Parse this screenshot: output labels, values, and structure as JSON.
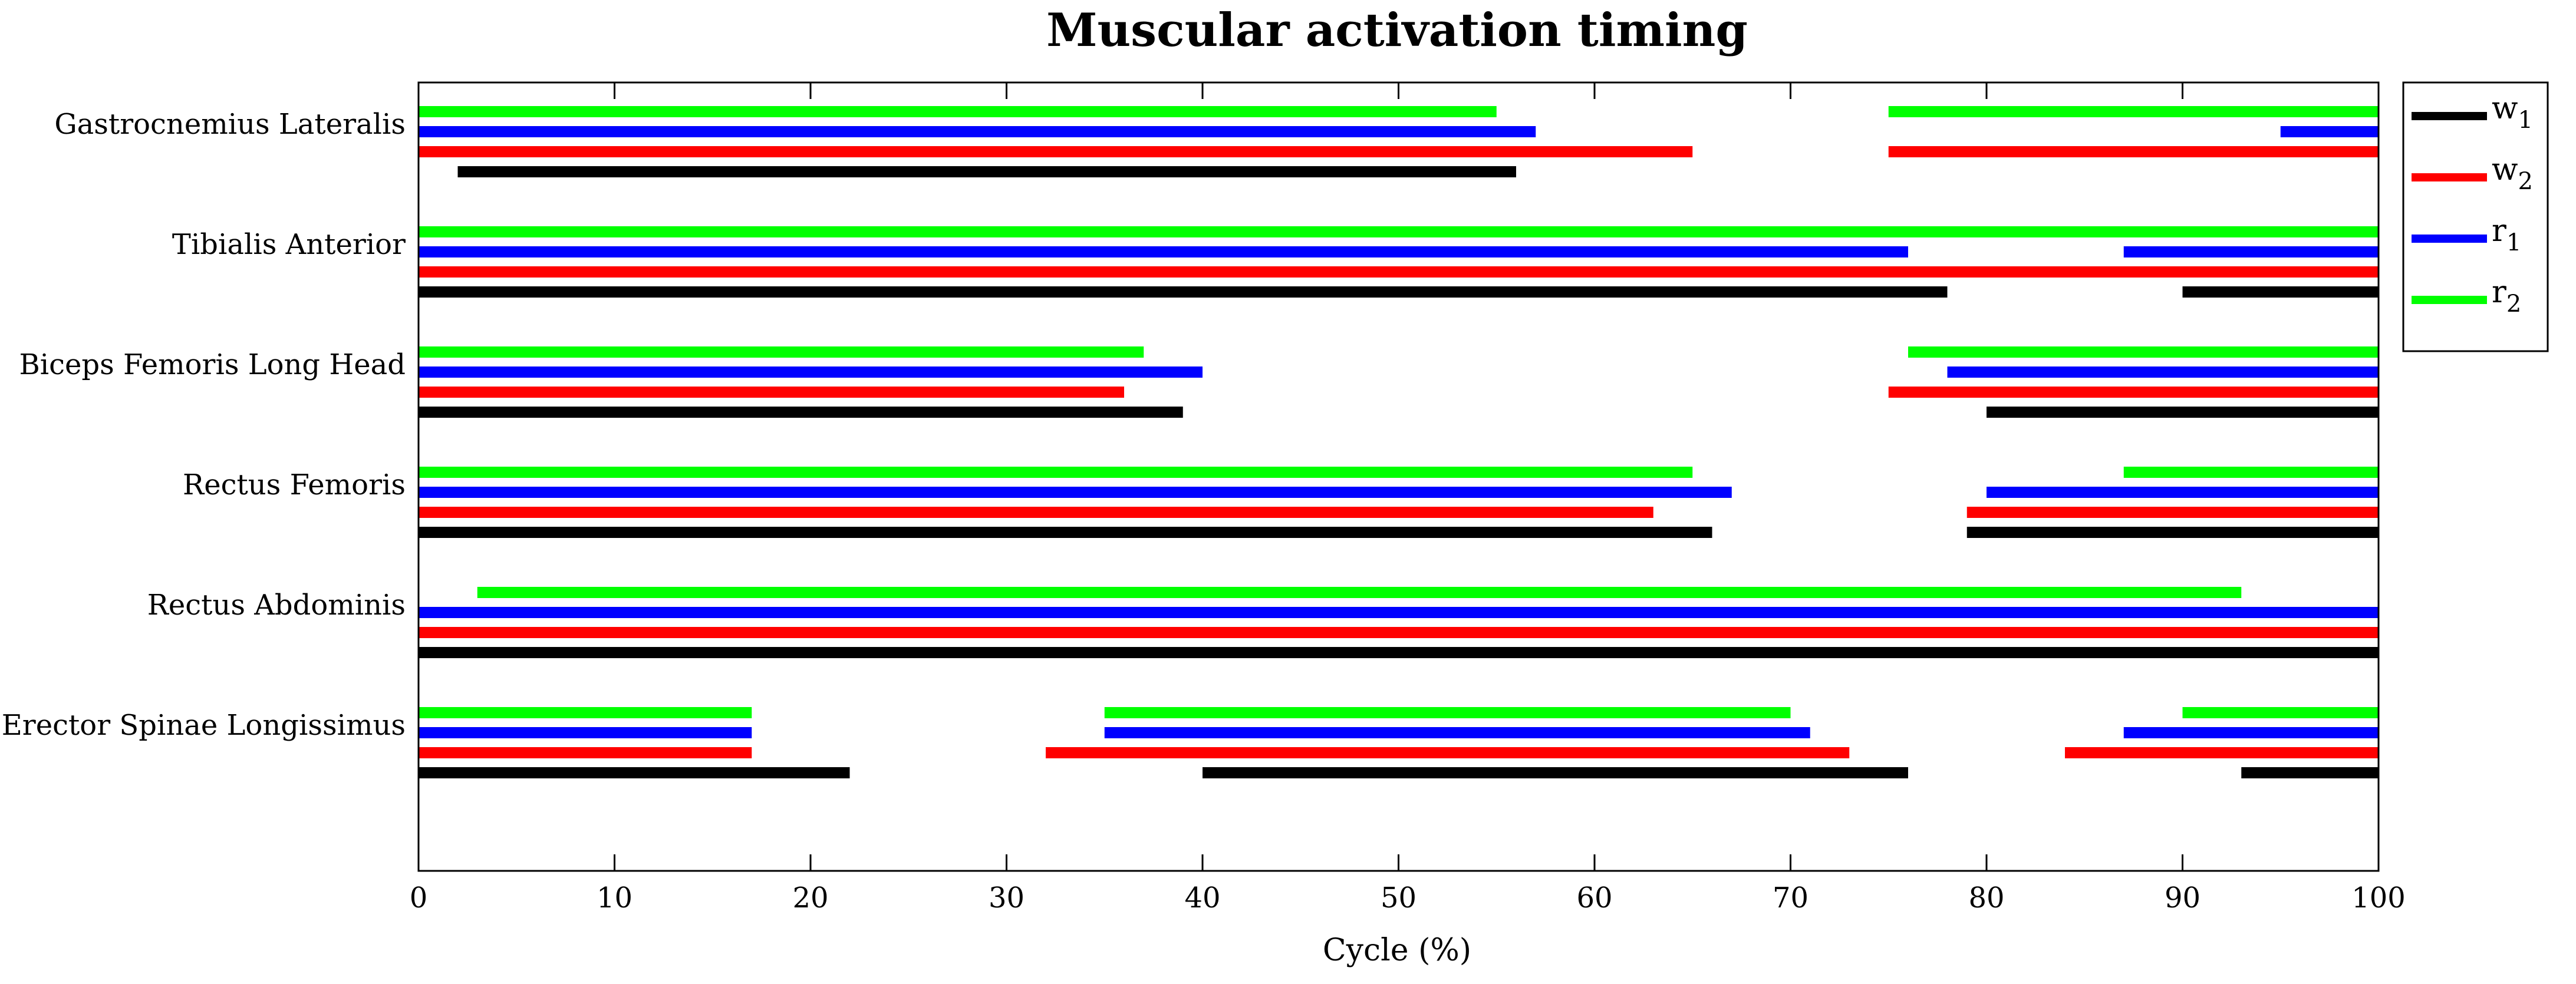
{
  "chart_data": {
    "type": "bar",
    "title": "Muscular activation timing",
    "xlabel": "Cycle (%)",
    "ylabel": "",
    "xlim": [
      0,
      100
    ],
    "xticks": [
      0,
      10,
      20,
      30,
      40,
      50,
      60,
      70,
      80,
      90,
      100
    ],
    "tick_labels": [
      "0",
      "10",
      "20",
      "30",
      "40",
      "50",
      "60",
      "70",
      "80",
      "90",
      "100"
    ],
    "legend_position": "right",
    "series": [
      {
        "key": "w1",
        "name": "w",
        "subscript": "1",
        "color": "#000000"
      },
      {
        "key": "w2",
        "name": "w",
        "subscript": "2",
        "color": "#ff0000"
      },
      {
        "key": "r1",
        "name": "r",
        "subscript": "1",
        "color": "#0000ff"
      },
      {
        "key": "r2",
        "name": "r",
        "subscript": "2",
        "color": "#00ff00"
      }
    ],
    "muscles": [
      {
        "name": "Gastrocnemius Lateralis",
        "intervals": {
          "r2": [
            [
              0,
              55
            ],
            [
              75,
              100
            ]
          ],
          "r1": [
            [
              0,
              57
            ],
            [
              95,
              100
            ]
          ],
          "w2": [
            [
              0,
              65
            ],
            [
              75,
              100
            ]
          ],
          "w1": [
            [
              2,
              56
            ]
          ]
        }
      },
      {
        "name": "Tibialis Anterior",
        "intervals": {
          "r2": [
            [
              0,
              100
            ]
          ],
          "r1": [
            [
              0,
              76
            ],
            [
              87,
              100
            ]
          ],
          "w2": [
            [
              0,
              100
            ]
          ],
          "w1": [
            [
              0,
              78
            ],
            [
              90,
              100
            ]
          ]
        }
      },
      {
        "name": "Biceps Femoris Long Head",
        "intervals": {
          "r2": [
            [
              0,
              37
            ],
            [
              76,
              100
            ]
          ],
          "r1": [
            [
              0,
              40
            ],
            [
              78,
              100
            ]
          ],
          "w2": [
            [
              0,
              36
            ],
            [
              75,
              100
            ]
          ],
          "w1": [
            [
              0,
              39
            ],
            [
              80,
              100
            ]
          ]
        }
      },
      {
        "name": "Rectus Femoris",
        "intervals": {
          "r2": [
            [
              0,
              65
            ],
            [
              87,
              100
            ]
          ],
          "r1": [
            [
              0,
              67
            ],
            [
              80,
              100
            ]
          ],
          "w2": [
            [
              0,
              63
            ],
            [
              79,
              100
            ]
          ],
          "w1": [
            [
              0,
              66
            ],
            [
              79,
              100
            ]
          ]
        }
      },
      {
        "name": "Rectus Abdominis",
        "intervals": {
          "r2": [
            [
              3,
              93
            ]
          ],
          "r1": [
            [
              0,
              100
            ]
          ],
          "w2": [
            [
              0,
              100
            ]
          ],
          "w1": [
            [
              0,
              100
            ]
          ]
        }
      },
      {
        "name": "Erector Spinae Longissimus",
        "intervals": {
          "r2": [
            [
              0,
              17
            ],
            [
              35,
              70
            ],
            [
              90,
              100
            ]
          ],
          "r1": [
            [
              0,
              17
            ],
            [
              35,
              71
            ],
            [
              87,
              100
            ]
          ],
          "w2": [
            [
              0,
              17
            ],
            [
              32,
              73
            ],
            [
              84,
              100
            ]
          ],
          "w1": [
            [
              0,
              22
            ],
            [
              40,
              76
            ],
            [
              93,
              100
            ]
          ]
        }
      }
    ]
  }
}
